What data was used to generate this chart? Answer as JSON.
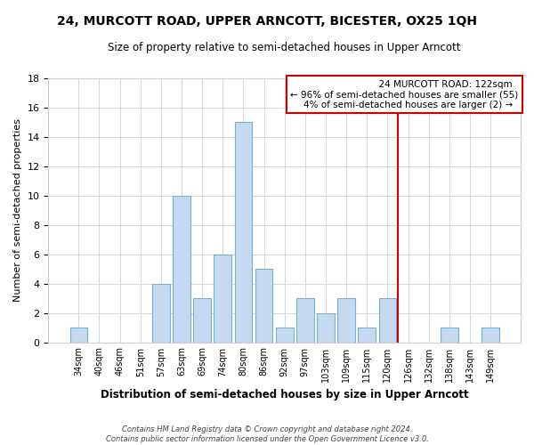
{
  "title": "24, MURCOTT ROAD, UPPER ARNCOTT, BICESTER, OX25 1QH",
  "subtitle": "Size of property relative to semi-detached houses in Upper Arncott",
  "xlabel": "Distribution of semi-detached houses by size in Upper Arncott",
  "ylabel": "Number of semi-detached properties",
  "footer_line1": "Contains HM Land Registry data © Crown copyright and database right 2024.",
  "footer_line2": "Contains public sector information licensed under the Open Government Licence v3.0.",
  "bins": [
    "34sqm",
    "40sqm",
    "46sqm",
    "51sqm",
    "57sqm",
    "63sqm",
    "69sqm",
    "74sqm",
    "80sqm",
    "86sqm",
    "92sqm",
    "97sqm",
    "103sqm",
    "109sqm",
    "115sqm",
    "120sqm",
    "126sqm",
    "132sqm",
    "138sqm",
    "143sqm",
    "149sqm"
  ],
  "counts": [
    1,
    0,
    0,
    0,
    4,
    10,
    3,
    6,
    15,
    5,
    1,
    3,
    2,
    3,
    1,
    3,
    0,
    0,
    1,
    0,
    1
  ],
  "bar_color": "#c5d9f0",
  "bar_edge_color": "#7aafd4",
  "vline_x": 15.5,
  "vline_color": "#cc0000",
  "annotation_title": "24 MURCOTT ROAD: 122sqm",
  "annotation_line1": "← 96% of semi-detached houses are smaller (55)",
  "annotation_line2": "4% of semi-detached houses are larger (2) →",
  "annotation_box_color": "#ffffff",
  "annotation_box_edge": "#cc0000",
  "ylim": [
    0,
    18
  ],
  "yticks": [
    0,
    2,
    4,
    6,
    8,
    10,
    12,
    14,
    16,
    18
  ],
  "title_fontsize": 10,
  "subtitle_fontsize": 8.5
}
